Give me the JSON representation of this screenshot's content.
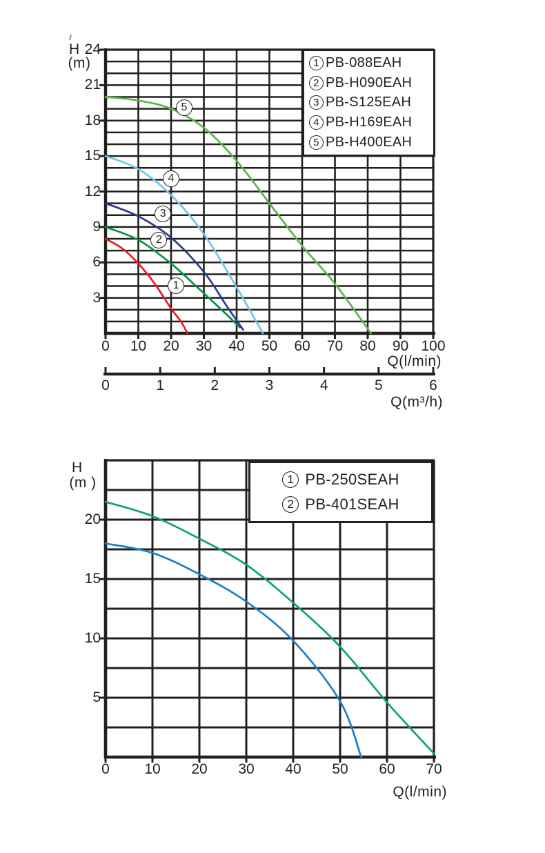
{
  "page": {
    "background": "#ffffff",
    "ink_color": "#221f1f"
  },
  "chart_data": [
    {
      "type": "line",
      "title": "",
      "xlabel": "Q(l/min)",
      "x2label": "Q(m³/h)",
      "ylabel": "H (m)",
      "ylabel_lines": [
        "H",
        "(m)"
      ],
      "xlim": [
        0,
        100
      ],
      "ylim": [
        0,
        24
      ],
      "x2lim": [
        0,
        6
      ],
      "x_ticks": [
        0,
        10,
        20,
        30,
        40,
        50,
        60,
        70,
        80,
        90,
        100
      ],
      "y_ticks": [
        3,
        6,
        9,
        12,
        15,
        18,
        21,
        24
      ],
      "x2_ticks": [
        0,
        1,
        2,
        3,
        4,
        5,
        6
      ],
      "grid": {
        "on": true,
        "x_step": 10,
        "y_step": 1
      },
      "legend_position": "top-right",
      "series": [
        {
          "num": "1",
          "name": "PB-088EAH",
          "color": "#e51e25",
          "points": [
            [
              0,
              8
            ],
            [
              5,
              7.2
            ],
            [
              10,
              5.9
            ],
            [
              15,
              4.2
            ],
            [
              20,
              2.1
            ],
            [
              23,
              1.0
            ],
            [
              25,
              0
            ]
          ],
          "tag": [
            21.5,
            4.05
          ]
        },
        {
          "num": "2",
          "name": "PB-H090EAH",
          "color": "#009344",
          "points": [
            [
              0,
              9
            ],
            [
              10,
              7.9
            ],
            [
              20,
              5.9
            ],
            [
              28,
              3.9
            ],
            [
              35,
              2.1
            ],
            [
              41,
              0.5
            ]
          ],
          "tag": [
            16.3,
            7.9
          ]
        },
        {
          "num": "3",
          "name": "PB-S125EAH",
          "color": "#2b3a8f",
          "points": [
            [
              0,
              11
            ],
            [
              10,
              9.9
            ],
            [
              20,
              8.1
            ],
            [
              30,
              5.2
            ],
            [
              37,
              2.3
            ],
            [
              42,
              0.3
            ]
          ],
          "tag": [
            17.5,
            10.1
          ]
        },
        {
          "num": "4",
          "name": "PB-H169EAH",
          "color": "#6cc7e2",
          "points": [
            [
              0,
              15
            ],
            [
              10,
              13.9
            ],
            [
              20,
              11.7
            ],
            [
              30,
              8.4
            ],
            [
              40,
              3.9
            ],
            [
              48,
              0
            ]
          ],
          "tag": [
            20,
            13.1
          ]
        },
        {
          "num": "5",
          "name": "PB-H400EAH",
          "color": "#5cb64a",
          "points": [
            [
              0,
              20
            ],
            [
              10,
              19.7
            ],
            [
              20,
              19.0
            ],
            [
              30,
              17.4
            ],
            [
              40,
              14.6
            ],
            [
              50,
              11.0
            ],
            [
              60,
              7.4
            ],
            [
              70,
              4.2
            ],
            [
              81,
              0
            ]
          ],
          "tag": [
            24,
            19.1
          ]
        }
      ]
    },
    {
      "type": "line",
      "title": "",
      "xlabel": "Q(l/min)",
      "ylabel": "H (m )",
      "ylabel_lines": [
        "H",
        "(m )"
      ],
      "xlim": [
        0,
        70
      ],
      "ylim": [
        0,
        25
      ],
      "x_ticks": [
        0,
        10,
        20,
        30,
        40,
        50,
        60,
        70
      ],
      "y_ticks": [
        5,
        10,
        15,
        20
      ],
      "grid": {
        "on": true,
        "x_step": 10,
        "y_step": 2.5
      },
      "legend_position": "top-right",
      "series": [
        {
          "num": "1",
          "name": "PB-250SEAH",
          "color": "#1d7fc6",
          "points": [
            [
              0,
              18
            ],
            [
              10,
              17.2
            ],
            [
              20,
              15.4
            ],
            [
              30,
              13.1
            ],
            [
              40,
              9.8
            ],
            [
              50,
              4.7
            ],
            [
              54.5,
              0
            ]
          ]
        },
        {
          "num": "2",
          "name": "PB-401SEAH",
          "color": "#0aa278",
          "points": [
            [
              0,
              21.5
            ],
            [
              10,
              20.3
            ],
            [
              20,
              18.4
            ],
            [
              30,
              16.2
            ],
            [
              40,
              13.0
            ],
            [
              50,
              9.3
            ],
            [
              60,
              4.6
            ],
            [
              70,
              0.3
            ]
          ]
        }
      ]
    }
  ]
}
